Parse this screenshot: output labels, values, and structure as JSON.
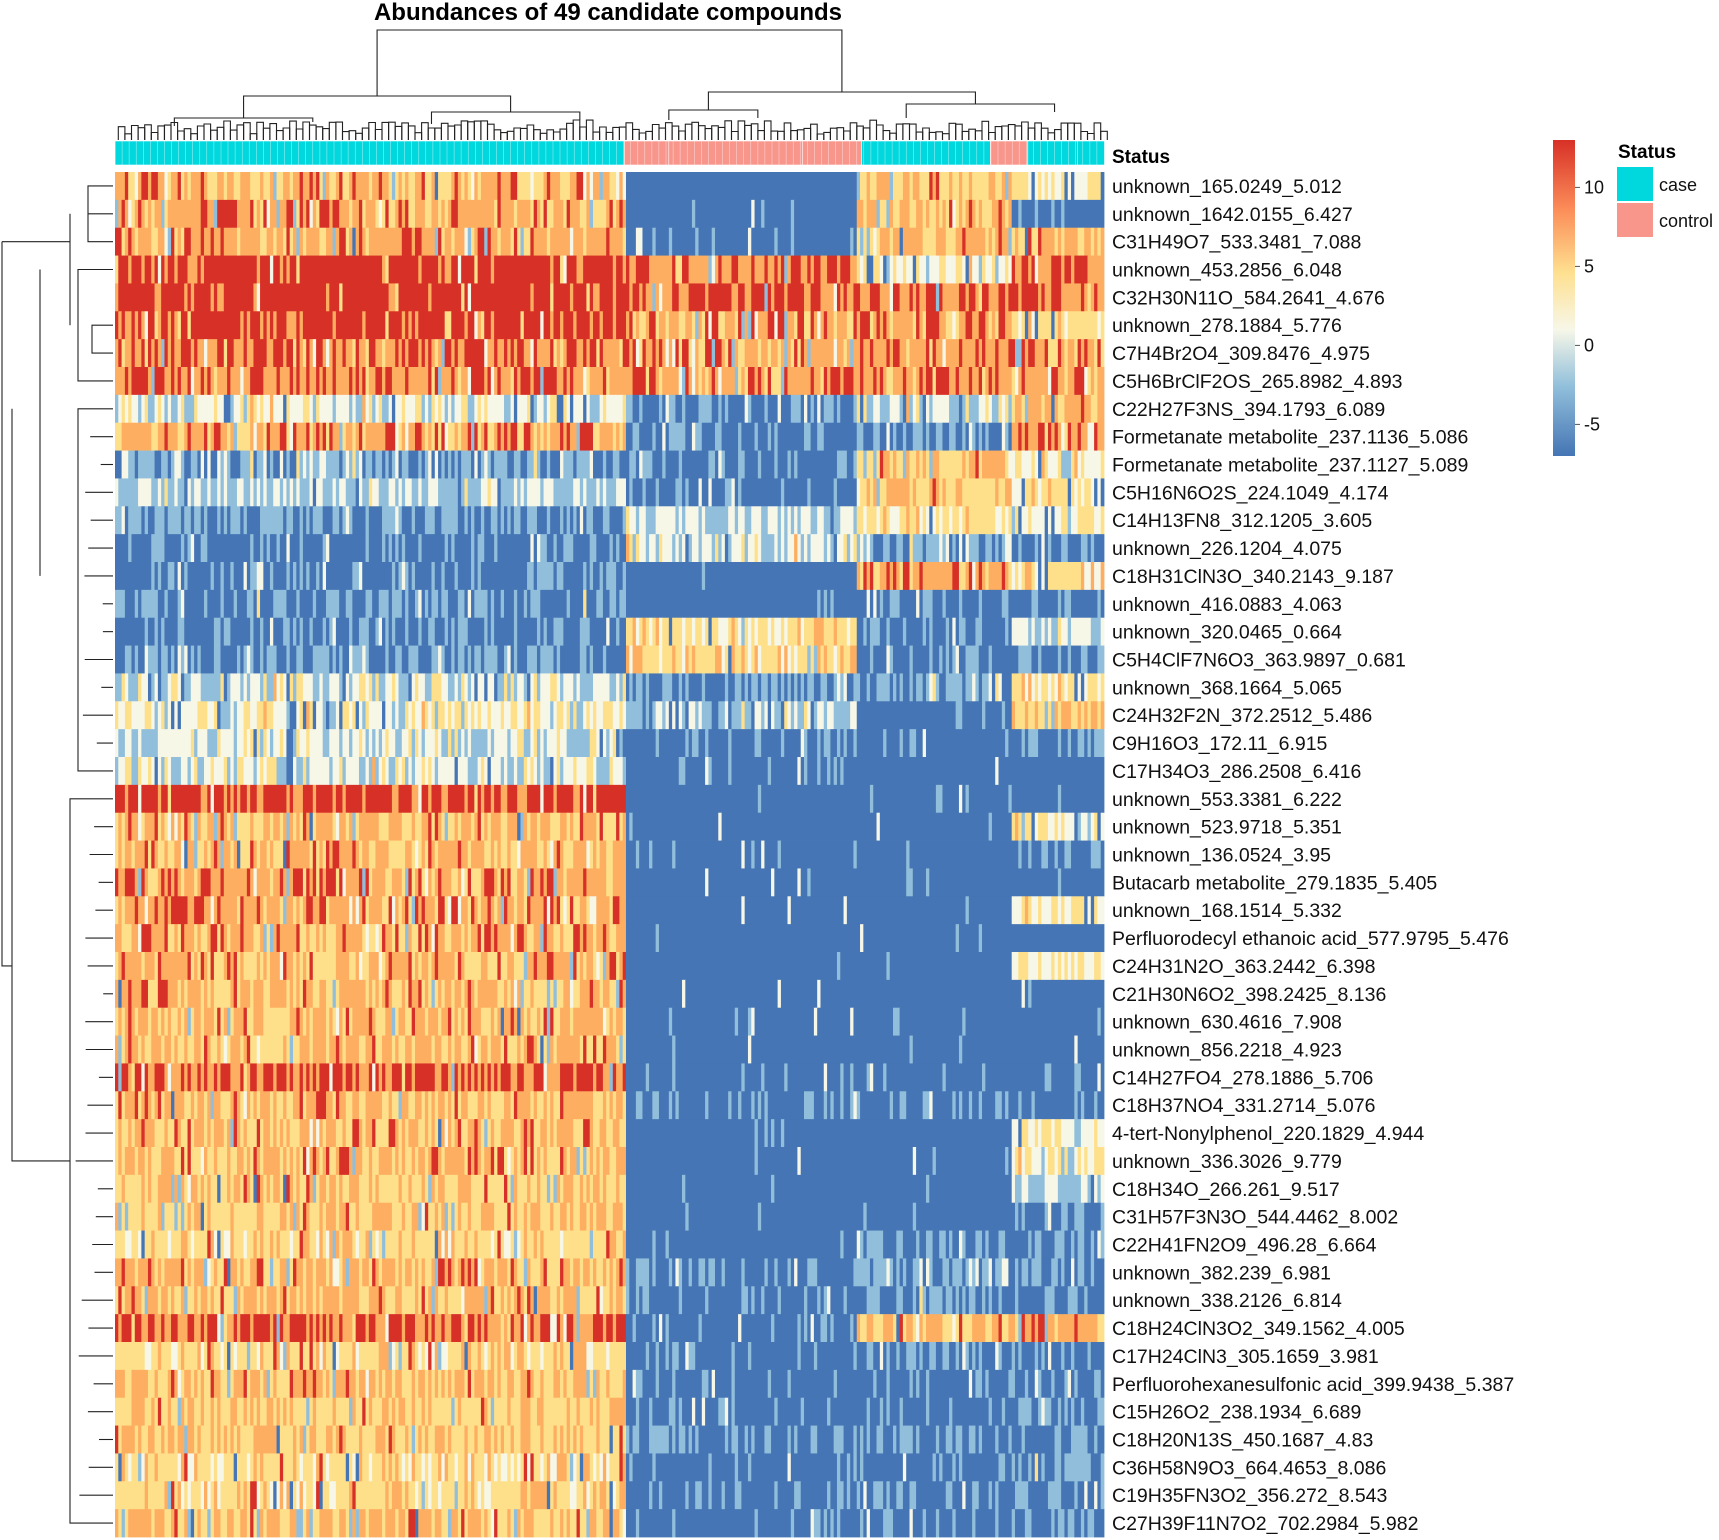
{
  "chart_data": {
    "type": "heatmap",
    "title": "Abundances of 49 candidate compounds",
    "annotation_title": "Status",
    "legend": {
      "color_scale": {
        "ticks": [
          10,
          5,
          0,
          -5
        ],
        "range": [
          -7,
          13
        ]
      },
      "status_title": "Status",
      "categories": [
        {
          "label": "case",
          "color": "#00D8DE"
        },
        {
          "label": "control",
          "color": "#F8968C"
        }
      ]
    },
    "palette": {
      "low": "#4575B4",
      "lowmid": "#91BFDB",
      "mid": "#F7F7E8",
      "midhigh": "#FEE08B",
      "high": "#FDAE61",
      "top": "#D73027"
    },
    "column_status_blocks": [
      {
        "status": "case",
        "fraction": 0.515
      },
      {
        "status": "control",
        "fraction": 0.045
      },
      {
        "status": "control",
        "fraction": 0.135
      },
      {
        "status": "control",
        "fraction": 0.06
      },
      {
        "status": "case",
        "fraction": 0.13
      },
      {
        "status": "control",
        "fraction": 0.038
      },
      {
        "status": "case",
        "fraction": 0.05
      },
      {
        "status": "case",
        "fraction": 0.027
      }
    ],
    "rows": [
      {
        "label": "unknown_165.0249_5.012",
        "pattern": [
          7.5,
          -6,
          6.5,
          3
        ]
      },
      {
        "label": "unknown_1642.0155_6.427",
        "pattern": [
          8,
          -6,
          7,
          -5
        ]
      },
      {
        "label": "C31H49O7_533.3481_7.088",
        "pattern": [
          7.5,
          -5,
          7,
          6
        ]
      },
      {
        "label": "unknown_453.2856_6.048",
        "pattern": [
          11.5,
          9,
          2,
          9
        ]
      },
      {
        "label": "C32H30N11O_584.2641_4.676",
        "pattern": [
          11.5,
          10,
          9,
          9
        ]
      },
      {
        "label": "unknown_278.1884_5.776",
        "pattern": [
          11,
          8,
          8,
          4
        ]
      },
      {
        "label": "C7H4Br2O4_309.8476_4.975",
        "pattern": [
          9,
          8,
          8.5,
          8
        ]
      },
      {
        "label": "C5H6BrClF2OS_265.8982_4.893",
        "pattern": [
          9,
          8,
          8.5,
          8
        ]
      },
      {
        "label": "C22H27F3NS_394.1793_6.089",
        "pattern": [
          1,
          -4,
          1,
          7
        ]
      },
      {
        "label": "Formetanate metabolite_237.1136_5.086",
        "pattern": [
          8,
          -4,
          -3,
          9
        ]
      },
      {
        "label": "Formetanate metabolite_237.1127_5.089",
        "pattern": [
          -2,
          -4,
          6,
          2
        ]
      },
      {
        "label": "C5H16N6O2S_224.1049_4.174",
        "pattern": [
          0,
          -5,
          6,
          3
        ]
      },
      {
        "label": "C14H13FN8_312.1205_3.605",
        "pattern": [
          -3,
          0,
          4,
          3
        ]
      },
      {
        "label": "unknown_226.1204_4.075",
        "pattern": [
          -4,
          1,
          -2,
          -4
        ]
      },
      {
        "label": "C18H31ClN3O_340.2143_9.187",
        "pattern": [
          -4,
          -6,
          8,
          4
        ]
      },
      {
        "label": "unknown_416.0883_4.063",
        "pattern": [
          -3,
          -6,
          -4,
          -4
        ]
      },
      {
        "label": "unknown_320.0465_0.664",
        "pattern": [
          -4,
          4,
          -4,
          0
        ]
      },
      {
        "label": "C5H4ClF7N6O3_363.9897_0.681",
        "pattern": [
          -3,
          5,
          -4,
          -4
        ]
      },
      {
        "label": "unknown_368.1664_5.065",
        "pattern": [
          1,
          -3,
          -3,
          4
        ]
      },
      {
        "label": "C24H32F2N_372.2512_5.486",
        "pattern": [
          2,
          -1,
          -5,
          6
        ]
      },
      {
        "label": "C9H16O3_172.11_6.915",
        "pattern": [
          1,
          -4,
          -5,
          -4
        ]
      },
      {
        "label": "C17H34O3_286.2508_6.416",
        "pattern": [
          1,
          -5,
          -6,
          -6
        ]
      },
      {
        "label": "unknown_553.3381_6.222",
        "pattern": [
          11,
          -6,
          -6,
          -6
        ]
      },
      {
        "label": "unknown_523.9718_5.351",
        "pattern": [
          7,
          -6,
          -6,
          2
        ]
      },
      {
        "label": "unknown_136.0524_3.95",
        "pattern": [
          7,
          -6,
          -6,
          -4
        ]
      },
      {
        "label": "Butacarb metabolite_279.1835_5.405",
        "pattern": [
          8,
          -6,
          -6,
          -6
        ]
      },
      {
        "label": "unknown_168.1514_5.332",
        "pattern": [
          8,
          -6,
          -6,
          3
        ]
      },
      {
        "label": "Perfluorodecyl ethanoic acid_577.9795_5.476",
        "pattern": [
          7.5,
          -6,
          -6,
          -6
        ]
      },
      {
        "label": "C24H31N2O_363.2442_6.398",
        "pattern": [
          7,
          -6,
          -6,
          3
        ]
      },
      {
        "label": "C21H30N6O2_398.2425_8.136",
        "pattern": [
          7,
          -6,
          -6,
          -6
        ]
      },
      {
        "label": "unknown_630.4616_7.908",
        "pattern": [
          7,
          -6,
          -6,
          -6
        ]
      },
      {
        "label": "unknown_856.2218_4.923",
        "pattern": [
          7,
          -6,
          -6,
          -6
        ]
      },
      {
        "label": "C14H27FO4_278.1886_5.706",
        "pattern": [
          10,
          -5,
          -5,
          -5
        ]
      },
      {
        "label": "C18H37NO4_331.2714_5.076",
        "pattern": [
          7,
          -5,
          -4,
          -4
        ]
      },
      {
        "label": "4-tert-Nonylphenol_220.1829_4.944",
        "pattern": [
          7,
          -6,
          -6,
          2
        ]
      },
      {
        "label": "unknown_336.3026_9.779",
        "pattern": [
          7,
          -6,
          -6,
          2
        ]
      },
      {
        "label": "C18H34O_266.261_9.517",
        "pattern": [
          6,
          -6,
          -6,
          0
        ]
      },
      {
        "label": "C31H57F3N3O_544.4462_8.002",
        "pattern": [
          6,
          -6,
          -6,
          -4
        ]
      },
      {
        "label": "C22H41FN2O9_496.28_6.664",
        "pattern": [
          5,
          -6,
          -3,
          -3
        ]
      },
      {
        "label": "unknown_382.239_6.981",
        "pattern": [
          7,
          -4,
          -2,
          -3
        ]
      },
      {
        "label": "unknown_338.2126_6.814",
        "pattern": [
          7,
          -5,
          -3,
          -4
        ]
      },
      {
        "label": "C18H24ClN3O2_349.1562_4.005",
        "pattern": [
          9,
          -5,
          7,
          8
        ]
      },
      {
        "label": "C17H24ClN3_305.1659_3.981",
        "pattern": [
          5,
          -5,
          -3,
          -4
        ]
      },
      {
        "label": "Perfluorohexanesulfonic acid_399.9438_5.387",
        "pattern": [
          7,
          -5,
          -5,
          -4
        ]
      },
      {
        "label": "C15H26O2_238.1934_6.689",
        "pattern": [
          6,
          -5,
          -5,
          -4
        ]
      },
      {
        "label": "C18H20N13S_450.1687_4.83",
        "pattern": [
          6,
          -4,
          -4,
          -3
        ]
      },
      {
        "label": "C36H58N9O3_664.4653_8.086",
        "pattern": [
          5,
          -5,
          -5,
          -3
        ]
      },
      {
        "label": "C19H35FN3O2_356.272_8.543",
        "pattern": [
          5,
          -4,
          -4,
          -4
        ]
      },
      {
        "label": "C27H39F11N7O2_702.2984_5.982",
        "pattern": [
          7,
          -5,
          -5,
          -3
        ]
      }
    ]
  }
}
